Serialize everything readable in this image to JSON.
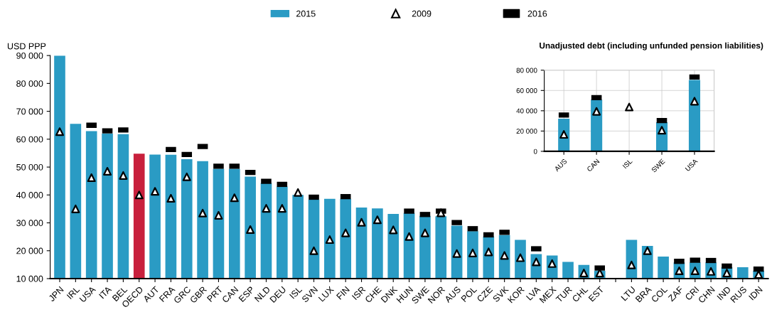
{
  "chart_data": [
    {
      "type": "bar",
      "ylabel": "USD PPP",
      "legend": "top",
      "categories": [
        "JPN",
        "IRL",
        "USA",
        "ITA",
        "BEL",
        "OECD",
        "AUT",
        "FRA",
        "GRC",
        "GBR",
        "PRT",
        "CAN",
        "ESP",
        "NLD",
        "DEU",
        "ISL",
        "SVN",
        "LUX",
        "FIN",
        "ISR",
        "CHE",
        "DNK",
        "HUN",
        "SWE",
        "NOR",
        "AUS",
        "POL",
        "CZE",
        "SVK",
        "KOR",
        "LVA",
        "MEX",
        "TUR",
        "CHL",
        "EST",
        null,
        "LTU",
        "BRA",
        "COL",
        "ZAF",
        "CRI",
        "CHN",
        "IND",
        "RUS",
        "IDN"
      ],
      "ylim": [
        10000,
        90000
      ],
      "yticks": [
        {
          "value": 10000,
          "label": "10 000"
        },
        {
          "value": 20000,
          "label": "20 000"
        },
        {
          "value": 30000,
          "label": "30 000"
        },
        {
          "value": 40000,
          "label": "40 000"
        },
        {
          "value": 50000,
          "label": "50 000"
        },
        {
          "value": 60000,
          "label": "60 000"
        },
        {
          "value": 70000,
          "label": "70 000"
        },
        {
          "value": 80000,
          "label": "80 000"
        },
        {
          "value": 90000,
          "label": "90 000"
        }
      ],
      "grid": false,
      "series": [
        {
          "name": "2015",
          "color": "#2a9bc4",
          "colors": [
            "#2a9bc4",
            "#2a9bc4",
            "#2a9bc4",
            "#2a9bc4",
            "#2a9bc4",
            "#c8203c",
            "#2a9bc4",
            "#2a9bc4",
            "#2a9bc4",
            "#2a9bc4",
            "#2a9bc4",
            "#2a9bc4",
            "#2a9bc4",
            "#2a9bc4",
            "#2a9bc4",
            "#2a9bc4",
            "#2a9bc4",
            "#2a9bc4",
            "#2a9bc4",
            "#2a9bc4",
            "#2a9bc4",
            "#2a9bc4",
            "#2a9bc4",
            "#2a9bc4",
            "#2a9bc4",
            "#2a9bc4",
            "#2a9bc4",
            "#2a9bc4",
            "#2a9bc4",
            "#2a9bc4",
            "#2a9bc4",
            "#2a9bc4",
            "#2a9bc4",
            "#2a9bc4",
            "#2a9bc4",
            "#2a9bc4",
            "#2a9bc4",
            "#2a9bc4",
            "#2a9bc4",
            "#2a9bc4",
            "#2a9bc4",
            "#2a9bc4",
            "#2a9bc4",
            "#2a9bc4",
            "#2a9bc4"
          ],
          "values": [
            90000,
            65500,
            62900,
            62000,
            61800,
            54800,
            54500,
            54400,
            52800,
            52100,
            49400,
            49400,
            46600,
            44300,
            43000,
            40000,
            38300,
            38600,
            38600,
            35500,
            35200,
            33200,
            33500,
            32500,
            32400,
            29000,
            27000,
            25100,
            25600,
            23900,
            18800,
            18300,
            16000,
            14900,
            12800,
            null,
            23900,
            21700,
            17900,
            15800,
            15800,
            15800,
            14100,
            14100,
            12800
          ]
        },
        {
          "name": "2009",
          "type": "scatter",
          "marker": "triangle",
          "color": "#000000",
          "values": [
            62700,
            35000,
            46200,
            48500,
            47000,
            40000,
            41300,
            38800,
            46500,
            33500,
            32700,
            39000,
            27600,
            35200,
            35200,
            40900,
            20000,
            24000,
            26400,
            30200,
            31100,
            27500,
            25100,
            26400,
            33600,
            19000,
            19200,
            19600,
            18300,
            17500,
            16000,
            15400,
            null,
            12000,
            12000,
            null,
            14900,
            20000,
            null,
            12800,
            12800,
            12600,
            12000,
            null,
            11500
          ]
        },
        {
          "name": "2016",
          "type": "scatter",
          "marker": "square",
          "color": "#000000",
          "values": [
            null,
            null,
            65000,
            63000,
            63300,
            null,
            null,
            56300,
            54500,
            57400,
            50300,
            50300,
            48100,
            44900,
            43800,
            null,
            39200,
            null,
            39400,
            null,
            null,
            null,
            34200,
            33000,
            34200,
            30100,
            27900,
            25700,
            26600,
            null,
            20700,
            null,
            null,
            null,
            13800,
            null,
            null,
            null,
            null,
            16200,
            16600,
            16500,
            14500,
            null,
            13400
          ]
        }
      ]
    },
    {
      "type": "bar",
      "title": "Unadjusted debt (including unfunded pension liabilities)",
      "categories": [
        "AUS",
        "CAN",
        "ISL",
        "SWE",
        "USA"
      ],
      "ylim": [
        0,
        80000
      ],
      "yticks": [
        0,
        {
          "value": 20000,
          "label": "20 000"
        },
        {
          "value": 40000,
          "label": "40 000"
        },
        {
          "value": 60000,
          "label": "60 000"
        },
        {
          "value": 80000,
          "label": "80 000"
        }
      ],
      "grid": true,
      "series": [
        {
          "color": "#2a9bc4",
          "values": [
            32200,
            51000,
            null,
            28700,
            70400
          ]
        },
        {
          "type": "scatter",
          "marker": "triangle",
          "color": "#000000",
          "values": [
            16700,
            39400,
            43700,
            20800,
            49400
          ]
        },
        {
          "type": "scatter",
          "marker": "square",
          "color": "#000000",
          "values": [
            35800,
            53000,
            null,
            30300,
            73300
          ]
        }
      ]
    }
  ]
}
